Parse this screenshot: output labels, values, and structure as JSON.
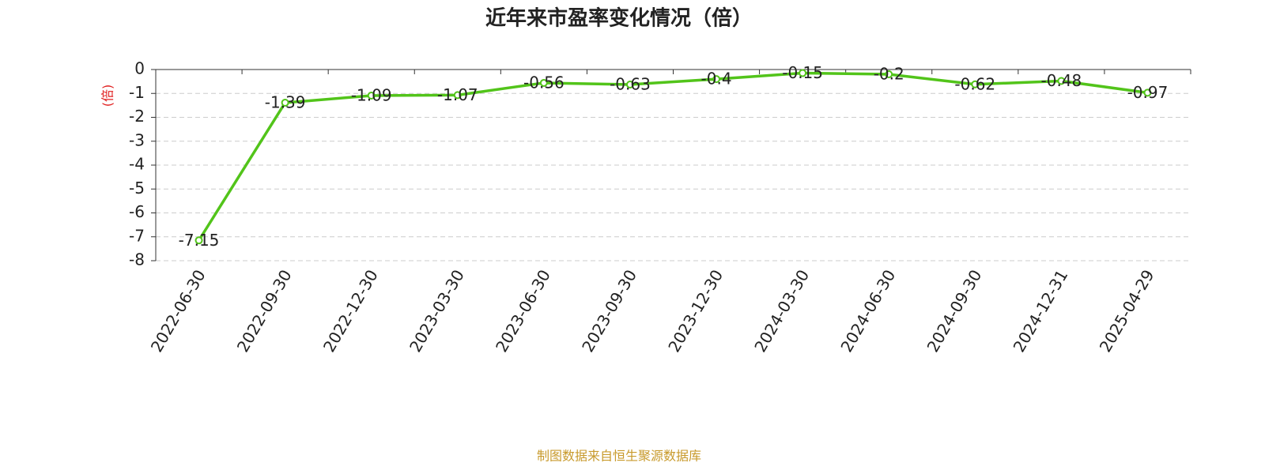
{
  "chart_data": {
    "type": "line",
    "title": "近年来市盈率变化情况（倍）",
    "y_label": "(倍)",
    "source": "制图数据来自恒生聚源数据库",
    "categories": [
      "2022-06-30",
      "2022-09-30",
      "2022-12-30",
      "2023-03-30",
      "2023-06-30",
      "2023-09-30",
      "2023-12-30",
      "2024-03-30",
      "2024-06-30",
      "2024-09-30",
      "2024-12-31",
      "2025-04-29"
    ],
    "series": [
      {
        "name": "市盈率",
        "color": "#52c41a",
        "values": [
          -7.15,
          -1.39,
          -1.09,
          -1.07,
          -0.56,
          -0.63,
          -0.4,
          -0.15,
          -0.2,
          -0.62,
          -0.48,
          -0.97
        ]
      }
    ],
    "ylim": [
      -8,
      0
    ],
    "yticks": [
      0,
      -1,
      -2,
      -3,
      -4,
      -5,
      -6,
      -7,
      -8
    ],
    "grid": true
  }
}
